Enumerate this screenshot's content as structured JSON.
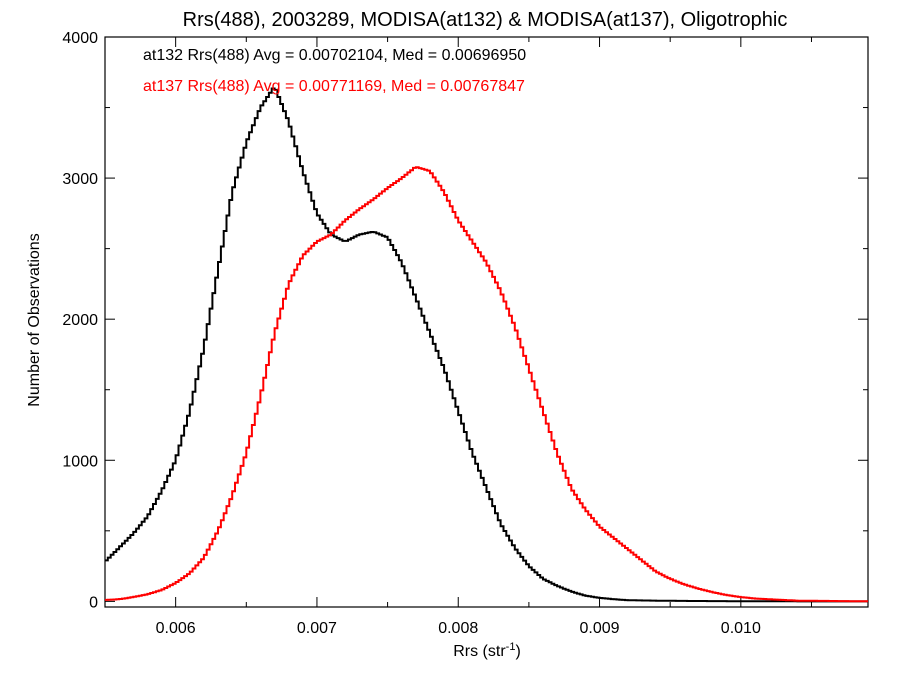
{
  "chart_data": {
    "type": "line",
    "style": "step-histogram",
    "title": "Rrs(488), 2003289, MODISA(at132) & MODISA(at137), Oligotrophic",
    "xlabel": "Rrs (str",
    "xlabel_sup": "-1",
    "xlabel_end": ")",
    "ylabel": "Number of Observations",
    "xlim": [
      0.0055,
      0.0109
    ],
    "ylim": [
      -40,
      4000
    ],
    "xticks": [
      0.006,
      0.007,
      0.008,
      0.009,
      0.01
    ],
    "xtick_labels": [
      "0.006",
      "0.007",
      "0.008",
      "0.009",
      "0.010"
    ],
    "yticks": [
      0,
      1000,
      2000,
      3000,
      4000
    ],
    "ytick_labels": [
      "0",
      "1000",
      "2000",
      "3000",
      "4000"
    ],
    "grid": false,
    "legend_position": "top-left",
    "annotations": [
      "at132 Rrs(488) Avg = 0.00702104, Med = 0.00696950",
      "at137 Rrs(488) Avg = 0.00771169, Med = 0.00767847"
    ],
    "series": [
      {
        "color": "#000000",
        "x": [
          0.0055,
          0.0056,
          0.0057,
          0.0058,
          0.0059,
          0.006,
          0.0061,
          0.0062,
          0.0063,
          0.0064,
          0.0065,
          0.0066,
          0.0067,
          0.0068,
          0.0069,
          0.007,
          0.0071,
          0.0072,
          0.0073,
          0.0074,
          0.0075,
          0.0076,
          0.0077,
          0.0078,
          0.0079,
          0.008,
          0.0081,
          0.0082,
          0.0083,
          0.0084,
          0.0085,
          0.0086,
          0.0087,
          0.0088,
          0.0089,
          0.009,
          0.0091,
          0.0092,
          0.0094,
          0.0096,
          0.0098,
          0.01,
          0.0102,
          0.0104,
          0.0106,
          0.0109
        ],
        "y": [
          280,
          380,
          480,
          600,
          780,
          1000,
          1350,
          1800,
          2350,
          2900,
          3250,
          3500,
          3650,
          3400,
          3050,
          2750,
          2600,
          2550,
          2600,
          2620,
          2580,
          2400,
          2150,
          1900,
          1650,
          1350,
          1050,
          800,
          550,
          380,
          250,
          160,
          110,
          70,
          40,
          25,
          15,
          8,
          5,
          3,
          2,
          1,
          1,
          0,
          0,
          0
        ]
      },
      {
        "color": "#ff0000",
        "x": [
          0.0055,
          0.0056,
          0.0057,
          0.0058,
          0.0059,
          0.006,
          0.0061,
          0.0062,
          0.0063,
          0.0064,
          0.0065,
          0.0066,
          0.0067,
          0.0068,
          0.0069,
          0.007,
          0.0071,
          0.0072,
          0.0073,
          0.0074,
          0.0075,
          0.0076,
          0.0077,
          0.0078,
          0.0079,
          0.008,
          0.0081,
          0.0082,
          0.0083,
          0.0084,
          0.0085,
          0.0086,
          0.0087,
          0.0088,
          0.0089,
          0.009,
          0.0091,
          0.0092,
          0.0093,
          0.0094,
          0.0095,
          0.0096,
          0.0097,
          0.0098,
          0.0099,
          0.01,
          0.0101,
          0.0102,
          0.0103,
          0.0104,
          0.0106,
          0.0108,
          0.0109
        ],
        "y": [
          10,
          15,
          30,
          50,
          80,
          130,
          200,
          310,
          500,
          750,
          1050,
          1450,
          1900,
          2250,
          2450,
          2550,
          2600,
          2700,
          2780,
          2850,
          2930,
          3000,
          3080,
          3050,
          2900,
          2700,
          2550,
          2400,
          2200,
          1950,
          1650,
          1350,
          1050,
          800,
          650,
          530,
          450,
          370,
          290,
          210,
          160,
          120,
          90,
          65,
          45,
          30,
          20,
          15,
          10,
          5,
          3,
          1,
          0
        ]
      }
    ]
  }
}
